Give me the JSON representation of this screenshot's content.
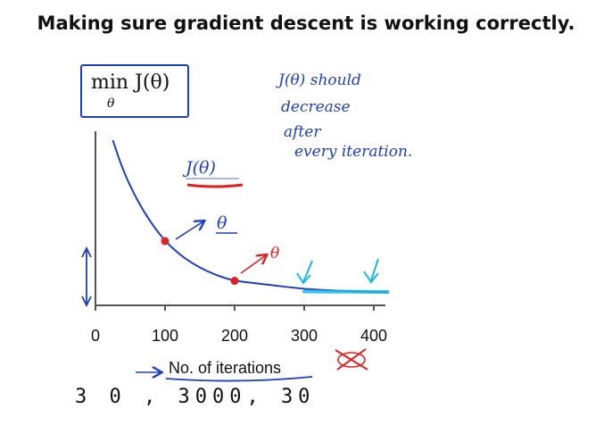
{
  "slide": {
    "title": "Making sure gradient descent is working correctly."
  },
  "min_box": {
    "main": "min J(θ)",
    "sub": "θ"
  },
  "notes": {
    "line1": "J(θ) should",
    "line2": "decrease",
    "line3": "after",
    "line4": "every iteration."
  },
  "annotations": {
    "curve_label": "J(θ)",
    "theta_1": "θ",
    "theta_2": "θ"
  },
  "bottom_note": "3 0 ,  3000,  30",
  "colors": {
    "pen_blue": "#1f3fbf",
    "red": "#e02020",
    "cyan": "#19b8e8",
    "axis": "#555555"
  },
  "chart_data": {
    "type": "line",
    "title": "",
    "xlabel": "No. of iterations",
    "ylabel": "J(θ)",
    "xlim": [
      0,
      420
    ],
    "x_ticks": [
      0,
      100,
      200,
      300,
      400
    ],
    "x_tick_labels": [
      "0",
      "100",
      "200",
      "300",
      "400"
    ],
    "series": [
      {
        "x": [
          25,
          40,
          60,
          80,
          100,
          120,
          140,
          160,
          180,
          200,
          230,
          260,
          300,
          340,
          380,
          420
        ],
        "y": [
          0.95,
          0.76,
          0.58,
          0.44,
          0.33,
          0.25,
          0.19,
          0.145,
          0.11,
          0.085,
          0.07,
          0.055,
          0.035,
          0.025,
          0.02,
          0.015
        ]
      }
    ],
    "highlighted_points": [
      {
        "x": 100,
        "y": 0.33
      },
      {
        "x": 200,
        "y": 0.085
      }
    ],
    "converged_segment": {
      "x": [
        300,
        420
      ],
      "y": [
        0.025,
        0.022
      ]
    },
    "grid": false
  }
}
